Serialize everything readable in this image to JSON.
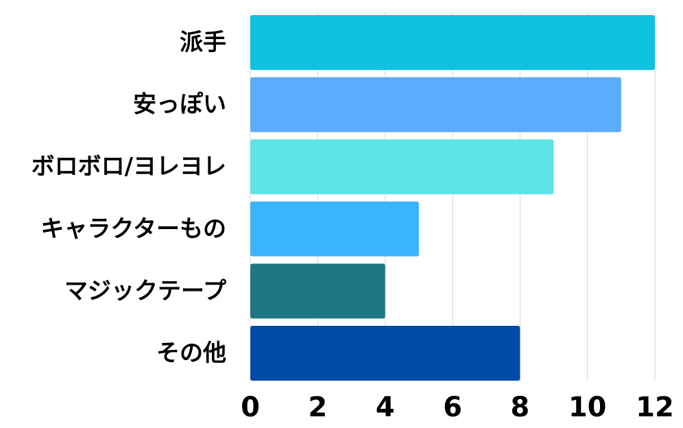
{
  "chart_data": {
    "type": "bar",
    "orientation": "horizontal",
    "categories": [
      "派手",
      "安っぽい",
      "ボロボロ/ヨレヨレ",
      "キャラクターもの",
      "マジックテープ",
      "その他"
    ],
    "values": [
      12,
      11,
      9,
      5,
      4,
      8
    ],
    "bar_colors": [
      "#0fc2df",
      "#5aacff",
      "#5ee3e6",
      "#3bb4ff",
      "#217686",
      "#034ba9"
    ],
    "xlim": [
      0,
      12
    ],
    "xticks": [
      0,
      2,
      4,
      6,
      8,
      10,
      12
    ],
    "title": "",
    "xlabel": "",
    "ylabel": "",
    "grid": "vertical",
    "legend": "none"
  }
}
